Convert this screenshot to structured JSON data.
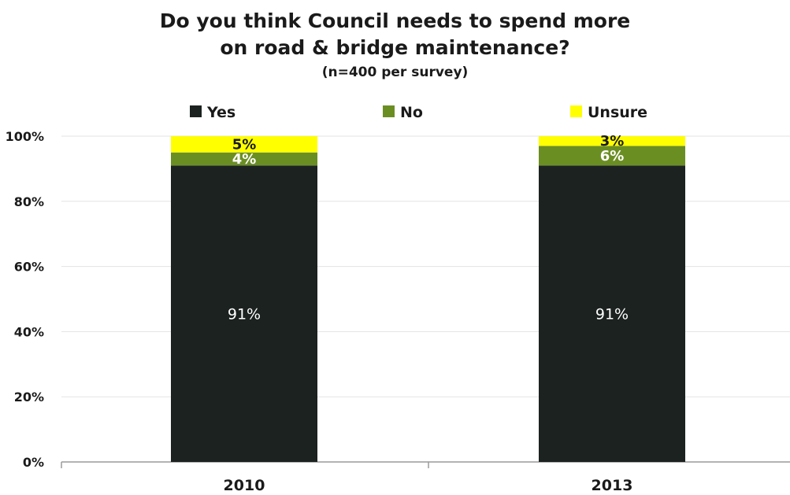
{
  "chart_data": {
    "type": "bar",
    "stacked": true,
    "title": "Do you think Council needs to spend more",
    "title_line2": "on road & bridge maintenance?",
    "subtitle": "(n=400 per survey)",
    "xlabel": "",
    "ylabel": "",
    "categories": [
      "2010",
      "2013"
    ],
    "series": [
      {
        "name": "Yes",
        "values": [
          91,
          91
        ],
        "labels": [
          "91%",
          "91%"
        ],
        "color": "#1b2220",
        "label_color": "#ffffff"
      },
      {
        "name": "No",
        "values": [
          4,
          6
        ],
        "labels": [
          "4%",
          "6%"
        ],
        "color": "#6b8e23",
        "label_color": "#ffffff"
      },
      {
        "name": "Unsure",
        "values": [
          5,
          3
        ],
        "labels": [
          "5%",
          "3%"
        ],
        "color": "#ffff00",
        "label_color": "#1a1a1a"
      }
    ],
    "yticks": [
      "0%",
      "20%",
      "40%",
      "60%",
      "80%",
      "100%"
    ],
    "ylim": [
      0,
      100
    ],
    "grid": true,
    "legend": "top"
  }
}
